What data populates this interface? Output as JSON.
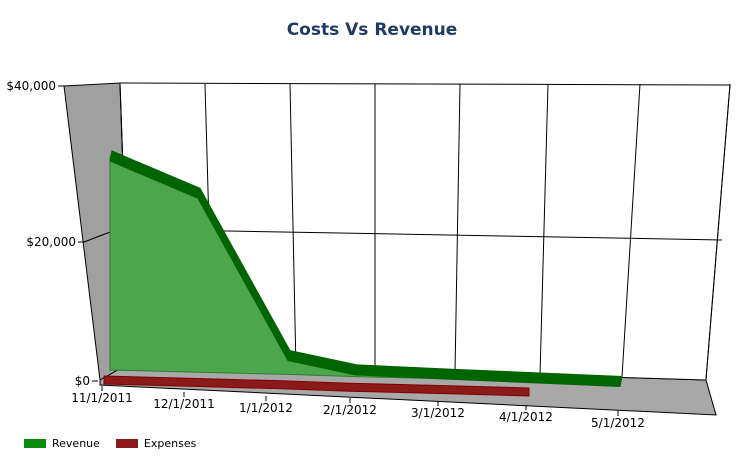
{
  "chart_data": {
    "type": "area",
    "title": "Costs Vs Revenue",
    "x": [
      "11/1/2011",
      "12/1/2011",
      "1/1/2012",
      "2/1/2012",
      "3/1/2012",
      "4/1/2012",
      "5/1/2012"
    ],
    "y_ticks": [
      "$0",
      "$20,000",
      "$40,000"
    ],
    "ylim": [
      0,
      40000
    ],
    "grid": true,
    "legend_position": "bottom-left",
    "series": [
      {
        "name": "Revenue",
        "color": "#4ca64c",
        "edge_color": "#006400",
        "values": [
          30000,
          25000,
          2500,
          800,
          500,
          300,
          100
        ]
      },
      {
        "name": "Expenses",
        "color": "#8b1a1a",
        "edge_color": "#800000",
        "values": [
          200,
          200,
          200,
          200,
          200,
          200,
          null
        ]
      }
    ]
  }
}
